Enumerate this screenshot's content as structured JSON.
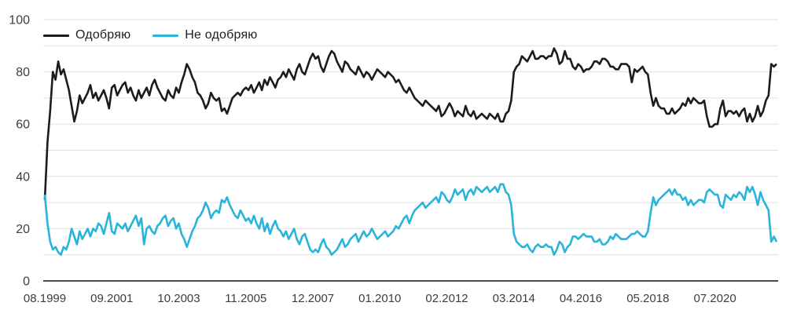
{
  "chart_data": {
    "type": "line",
    "title": "",
    "grid": true,
    "grid_step": 10,
    "legend_position": "top-left-inside",
    "x_axis": {
      "tick_labels": [
        "08.1999",
        "09.2001",
        "10.2003",
        "11.2005",
        "12.2007",
        "01.2010",
        "02.2012",
        "03.2014",
        "04.2016",
        "05.2018",
        "07.2020"
      ],
      "tick_indices": [
        0,
        25,
        50,
        75,
        100,
        125,
        150,
        175,
        200,
        225,
        250
      ]
    },
    "y_axis": {
      "tick_values": [
        0,
        20,
        40,
        60,
        80,
        100
      ],
      "min": 0,
      "max": 100
    },
    "series": [
      {
        "name": "Одобряю",
        "color": "#1c1c1c",
        "values": [
          31,
          53,
          65,
          80,
          77,
          84,
          79,
          81,
          77,
          73,
          67,
          61,
          65,
          71,
          68,
          70,
          72,
          75,
          70,
          72,
          69,
          71,
          73,
          70,
          66,
          74,
          75,
          71,
          73,
          75,
          76,
          72,
          74,
          71,
          69,
          73,
          70,
          72,
          74,
          71,
          75,
          77,
          74,
          72,
          70,
          69,
          73,
          71,
          70,
          74,
          72,
          76,
          79,
          83,
          81,
          78,
          76,
          72,
          71,
          69,
          66,
          68,
          72,
          70,
          69,
          70,
          65,
          66,
          64,
          67,
          70,
          71,
          72,
          71,
          73,
          74,
          73,
          75,
          72,
          74,
          76,
          73,
          77,
          75,
          78,
          76,
          74,
          77,
          78,
          80,
          78,
          81,
          79,
          77,
          81,
          83,
          80,
          79,
          82,
          85,
          87,
          85,
          86,
          82,
          80,
          83,
          86,
          88,
          87,
          84,
          82,
          80,
          84,
          83,
          81,
          80,
          79,
          82,
          80,
          78,
          80,
          79,
          77,
          79,
          81,
          80,
          79,
          78,
          80,
          79,
          78,
          76,
          77,
          75,
          73,
          72,
          74,
          72,
          70,
          69,
          68,
          67,
          69,
          68,
          67,
          66,
          65,
          67,
          63,
          64,
          66,
          68,
          66,
          63,
          65,
          64,
          63,
          67,
          64,
          63,
          65,
          62,
          63,
          64,
          63,
          62,
          64,
          63,
          62,
          64,
          61,
          61,
          64,
          65,
          69,
          80,
          82,
          83,
          86,
          85,
          84,
          86,
          88,
          85,
          85,
          86,
          86,
          85,
          86,
          86,
          89,
          87,
          83,
          84,
          88,
          85,
          85,
          82,
          81,
          83,
          82,
          80,
          81,
          81,
          82,
          84,
          84,
          83,
          85,
          85,
          84,
          82,
          82,
          81,
          81,
          83,
          83,
          83,
          82,
          76,
          81,
          80,
          81,
          82,
          80,
          79,
          72,
          67,
          70,
          67,
          66,
          66,
          64,
          64,
          66,
          64,
          65,
          66,
          68,
          67,
          70,
          68,
          70,
          69,
          68,
          68,
          69,
          63,
          59,
          59,
          60,
          60,
          66,
          69,
          63,
          65,
          65,
          64,
          65,
          63,
          65,
          66,
          61,
          64,
          61,
          63,
          67,
          63,
          65,
          69,
          71,
          83,
          82,
          83
        ]
      },
      {
        "name": "Не одобряю",
        "color": "#2ab4da",
        "values": [
          33,
          22,
          15,
          12,
          13,
          11,
          10,
          13,
          12,
          15,
          20,
          17,
          14,
          19,
          16,
          18,
          20,
          17,
          20,
          19,
          22,
          21,
          18,
          22,
          26,
          19,
          18,
          22,
          21,
          20,
          22,
          19,
          21,
          23,
          25,
          21,
          24,
          14,
          20,
          21,
          19,
          18,
          21,
          22,
          24,
          25,
          21,
          23,
          24,
          20,
          22,
          18,
          16,
          13,
          16,
          19,
          21,
          24,
          25,
          27,
          30,
          28,
          24,
          26,
          27,
          26,
          31,
          30,
          32,
          29,
          27,
          25,
          24,
          27,
          25,
          23,
          24,
          22,
          25,
          22,
          20,
          24,
          19,
          22,
          18,
          21,
          23,
          20,
          19,
          17,
          19,
          16,
          18,
          20,
          16,
          14,
          17,
          18,
          15,
          12,
          11,
          12,
          11,
          14,
          16,
          13,
          12,
          10,
          11,
          12,
          14,
          16,
          13,
          14,
          16,
          17,
          18,
          15,
          17,
          19,
          17,
          18,
          20,
          18,
          16,
          17,
          18,
          19,
          17,
          18,
          19,
          21,
          20,
          22,
          24,
          25,
          22,
          25,
          27,
          28,
          29,
          30,
          28,
          29,
          30,
          31,
          32,
          30,
          34,
          33,
          31,
          30,
          32,
          35,
          33,
          34,
          35,
          31,
          34,
          35,
          33,
          36,
          35,
          34,
          35,
          36,
          34,
          35,
          36,
          34,
          37,
          37,
          34,
          33,
          29,
          18,
          15,
          14,
          13,
          13,
          14,
          12,
          11,
          13,
          14,
          13,
          13,
          14,
          13,
          13,
          10,
          12,
          15,
          14,
          11,
          13,
          14,
          17,
          17,
          16,
          17,
          18,
          17,
          17,
          17,
          15,
          15,
          16,
          14,
          14,
          15,
          17,
          16,
          18,
          17,
          16,
          16,
          16,
          17,
          18,
          18,
          19,
          18,
          17,
          17,
          19,
          26,
          32,
          29,
          31,
          32,
          33,
          34,
          35,
          33,
          35,
          33,
          33,
          31,
          32,
          29,
          31,
          29,
          30,
          31,
          31,
          30,
          34,
          35,
          34,
          33,
          33,
          29,
          28,
          33,
          32,
          31,
          33,
          32,
          34,
          33,
          31,
          36,
          34,
          36,
          33,
          29,
          34,
          31,
          29,
          27,
          15,
          17,
          15
        ]
      }
    ]
  },
  "colors": {
    "background": "#ffffff",
    "gridline": "#e0e0e0",
    "axis_line": "#4d4d4d",
    "tick_text": "#3d3d3d",
    "legend_text": "#1f1f1f"
  },
  "layout_values": {
    "y_label_fontsize": "16",
    "x_label_fontsize": "15"
  }
}
